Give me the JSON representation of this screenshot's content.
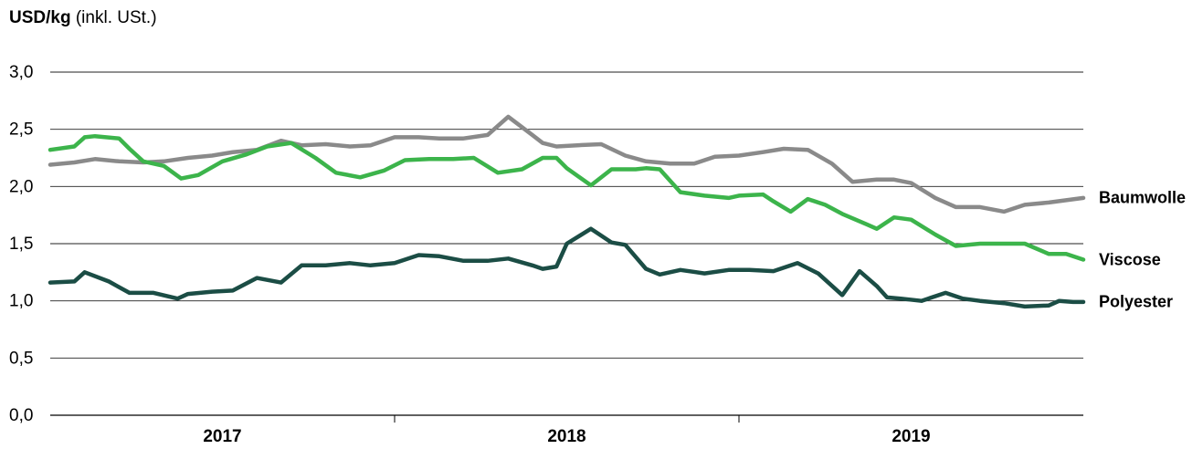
{
  "chart_data": {
    "type": "line",
    "ylabel_bold": "USD/kg",
    "ylabel_rest": " (inkl. USt.)",
    "ylim": [
      0,
      3
    ],
    "yticks": [
      {
        "v": 0,
        "label": "0,0"
      },
      {
        "v": 0.5,
        "label": "0,5"
      },
      {
        "v": 1,
        "label": "1,0"
      },
      {
        "v": 1.5,
        "label": "1,5"
      },
      {
        "v": 2,
        "label": "2,0"
      },
      {
        "v": 2.5,
        "label": "2,5"
      },
      {
        "v": 3,
        "label": "3,0"
      }
    ],
    "xlim": [
      2016.6,
      2019.6
    ],
    "year_dividers": [
      2017.6,
      2018.6
    ],
    "xticks": [
      {
        "x": 2017.1,
        "label": "2017"
      },
      {
        "x": 2018.1,
        "label": "2018"
      },
      {
        "x": 2019.1,
        "label": "2019"
      }
    ],
    "grid": true,
    "series": [
      {
        "name": "Baumwolle",
        "color": "#8a8a8a",
        "x": [
          2016.6,
          2016.67,
          2016.73,
          2016.8,
          2016.87,
          2016.93,
          2017.0,
          2017.07,
          2017.13,
          2017.2,
          2017.27,
          2017.33,
          2017.4,
          2017.47,
          2017.53,
          2017.6,
          2017.67,
          2017.73,
          2017.8,
          2017.87,
          2017.93,
          2018.0,
          2018.03,
          2018.07,
          2018.13,
          2018.2,
          2018.27,
          2018.33,
          2018.4,
          2018.47,
          2018.53,
          2018.6,
          2018.67,
          2018.73,
          2018.8,
          2018.87,
          2018.93,
          2019.0,
          2019.05,
          2019.1,
          2019.17,
          2019.23,
          2019.3,
          2019.37,
          2019.43,
          2019.5,
          2019.6
        ],
        "y": [
          2.19,
          2.21,
          2.24,
          2.22,
          2.21,
          2.22,
          2.25,
          2.27,
          2.3,
          2.32,
          2.4,
          2.36,
          2.37,
          2.35,
          2.36,
          2.43,
          2.43,
          2.42,
          2.42,
          2.45,
          2.61,
          2.45,
          2.38,
          2.35,
          2.36,
          2.37,
          2.27,
          2.22,
          2.2,
          2.2,
          2.26,
          2.27,
          2.3,
          2.33,
          2.32,
          2.2,
          2.04,
          2.06,
          2.06,
          2.03,
          1.9,
          1.82,
          1.82,
          1.78,
          1.84,
          1.86,
          1.9
        ]
      },
      {
        "name": "Viscose",
        "color": "#3cb44b",
        "x": [
          2016.6,
          2016.67,
          2016.7,
          2016.73,
          2016.8,
          2016.83,
          2016.87,
          2016.93,
          2016.98,
          2017.03,
          2017.1,
          2017.17,
          2017.23,
          2017.3,
          2017.37,
          2017.43,
          2017.5,
          2017.57,
          2017.63,
          2017.7,
          2017.77,
          2017.83,
          2017.9,
          2017.97,
          2018.03,
          2018.07,
          2018.1,
          2018.17,
          2018.23,
          2018.3,
          2018.33,
          2018.37,
          2018.43,
          2018.5,
          2018.57,
          2018.6,
          2018.67,
          2018.7,
          2018.75,
          2018.8,
          2018.85,
          2018.9,
          2018.97,
          2019.0,
          2019.05,
          2019.1,
          2019.17,
          2019.23,
          2019.3,
          2019.37,
          2019.43,
          2019.5,
          2019.55,
          2019.6
        ],
        "y": [
          2.32,
          2.35,
          2.43,
          2.44,
          2.42,
          2.33,
          2.22,
          2.18,
          2.07,
          2.1,
          2.22,
          2.28,
          2.35,
          2.38,
          2.25,
          2.12,
          2.08,
          2.14,
          2.23,
          2.24,
          2.24,
          2.25,
          2.12,
          2.15,
          2.25,
          2.25,
          2.16,
          2.01,
          2.15,
          2.15,
          2.16,
          2.15,
          1.95,
          1.92,
          1.9,
          1.92,
          1.93,
          1.87,
          1.78,
          1.89,
          1.84,
          1.76,
          1.67,
          1.63,
          1.73,
          1.71,
          1.58,
          1.48,
          1.5,
          1.5,
          1.5,
          1.41,
          1.41,
          1.36
        ]
      },
      {
        "name": "Polyester",
        "color": "#1b4d45",
        "x": [
          2016.6,
          2016.67,
          2016.7,
          2016.77,
          2016.83,
          2016.9,
          2016.97,
          2017.0,
          2017.07,
          2017.13,
          2017.2,
          2017.27,
          2017.33,
          2017.4,
          2017.47,
          2017.53,
          2017.6,
          2017.67,
          2017.73,
          2017.8,
          2017.87,
          2017.93,
          2018.0,
          2018.03,
          2018.07,
          2018.1,
          2018.17,
          2018.23,
          2018.27,
          2018.33,
          2018.37,
          2018.43,
          2018.5,
          2018.57,
          2018.63,
          2018.7,
          2018.77,
          2018.83,
          2018.9,
          2018.95,
          2019.0,
          2019.03,
          2019.07,
          2019.13,
          2019.2,
          2019.25,
          2019.3,
          2019.37,
          2019.43,
          2019.5,
          2019.53,
          2019.57,
          2019.6
        ],
        "y": [
          1.16,
          1.17,
          1.25,
          1.17,
          1.07,
          1.07,
          1.02,
          1.06,
          1.08,
          1.09,
          1.2,
          1.16,
          1.31,
          1.31,
          1.33,
          1.31,
          1.33,
          1.4,
          1.39,
          1.35,
          1.35,
          1.37,
          1.31,
          1.28,
          1.3,
          1.5,
          1.63,
          1.51,
          1.49,
          1.28,
          1.23,
          1.27,
          1.24,
          1.27,
          1.27,
          1.26,
          1.33,
          1.24,
          1.05,
          1.26,
          1.13,
          1.03,
          1.02,
          1.0,
          1.07,
          1.02,
          1.0,
          0.98,
          0.95,
          0.96,
          1.0,
          0.99,
          0.99
        ]
      }
    ]
  }
}
